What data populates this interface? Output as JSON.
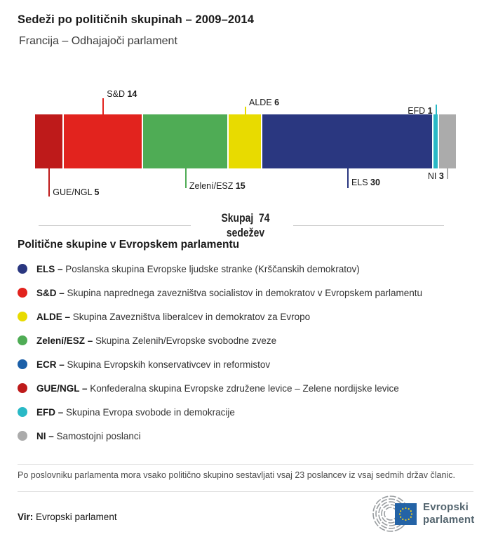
{
  "header": {
    "title": "Sedeži po političnih skupinah – 2009–2014",
    "subtitle": "Francija – Odhajajoči parlament"
  },
  "chart_data": {
    "type": "bar",
    "orientation": "horizontal",
    "stacked": true,
    "title": "Sedeži po političnih skupinah – 2009–2014",
    "subtitle": "Francija – Odhajajoči parlament",
    "total_seats": 74,
    "total_label_line1": "Skupaj  74",
    "total_label_line2": "sedežev",
    "categories": [
      "GUE/NGL",
      "S&D",
      "Zelení/ESZ",
      "ALDE",
      "ELS",
      "EFD",
      "NI"
    ],
    "values": [
      5,
      14,
      15,
      6,
      30,
      1,
      3
    ],
    "segments": [
      {
        "group": "GUE/NGL",
        "seats": 5,
        "color": "#BE1A1A",
        "label_side": "below"
      },
      {
        "group": "S&D",
        "seats": 14,
        "color": "#E2231E",
        "label_side": "above"
      },
      {
        "group": "Zelení/ESZ",
        "seats": 15,
        "color": "#4FAC55",
        "label_side": "below"
      },
      {
        "group": "ALDE",
        "seats": 6,
        "color": "#E8DB00",
        "label_side": "above"
      },
      {
        "group": "ELS",
        "seats": 30,
        "color": "#2A3780",
        "label_side": "below"
      },
      {
        "group": "EFD",
        "seats": 1,
        "color": "#29B9C6",
        "label_side": "above"
      },
      {
        "group": "NI",
        "seats": 3,
        "color": "#ABABAB",
        "label_side": "below"
      }
    ]
  },
  "legend": {
    "heading": "Politične skupine v Evropskem parlamentu",
    "separator": "–",
    "items": [
      {
        "abbr": "ELS",
        "desc": "Poslanska skupina Evropske ljudske stranke (Krščanskih demokratov)",
        "color": "#2A3780"
      },
      {
        "abbr": "S&D",
        "desc": "Skupina naprednega zavezništva socialistov in demokratov v Evropskem parlamentu",
        "color": "#E2231E"
      },
      {
        "abbr": "ALDE",
        "desc": "Skupina Zavezništva liberalcev in demokratov za Evropo",
        "color": "#E8DB00"
      },
      {
        "abbr": "Zelení/ESZ",
        "desc": "Skupina Zelenih/Evropske svobodne zveze",
        "color": "#4FAC55"
      },
      {
        "abbr": "ECR",
        "desc": "Skupina Evropskih konservativcev in reformistov",
        "color": "#1B5FA8"
      },
      {
        "abbr": "GUE/NGL",
        "desc": "Konfederalna skupina Evropske združene levice – Zelene nordijske levice",
        "color": "#BE1A1A"
      },
      {
        "abbr": "EFD",
        "desc": "Skupina Evropa svobode in demokracije",
        "color": "#29B9C6"
      },
      {
        "abbr": "NI",
        "desc": "Samostojni poslanci",
        "color": "#ABABAB"
      }
    ]
  },
  "footer": {
    "note": "Po poslovniku parlamenta mora vsako politično skupino sestavljati vsaj 23 poslancev iz vsaj sedmih držav članic.",
    "source_label": "Vir:",
    "source_value": "Evropski parlament"
  },
  "logo": {
    "line1": "Evropski",
    "line2": "parlament",
    "flag_color": "#2463A6",
    "star_color": "#F7D117",
    "arc_color": "#9A9EA1",
    "text_color": "#54656F"
  }
}
